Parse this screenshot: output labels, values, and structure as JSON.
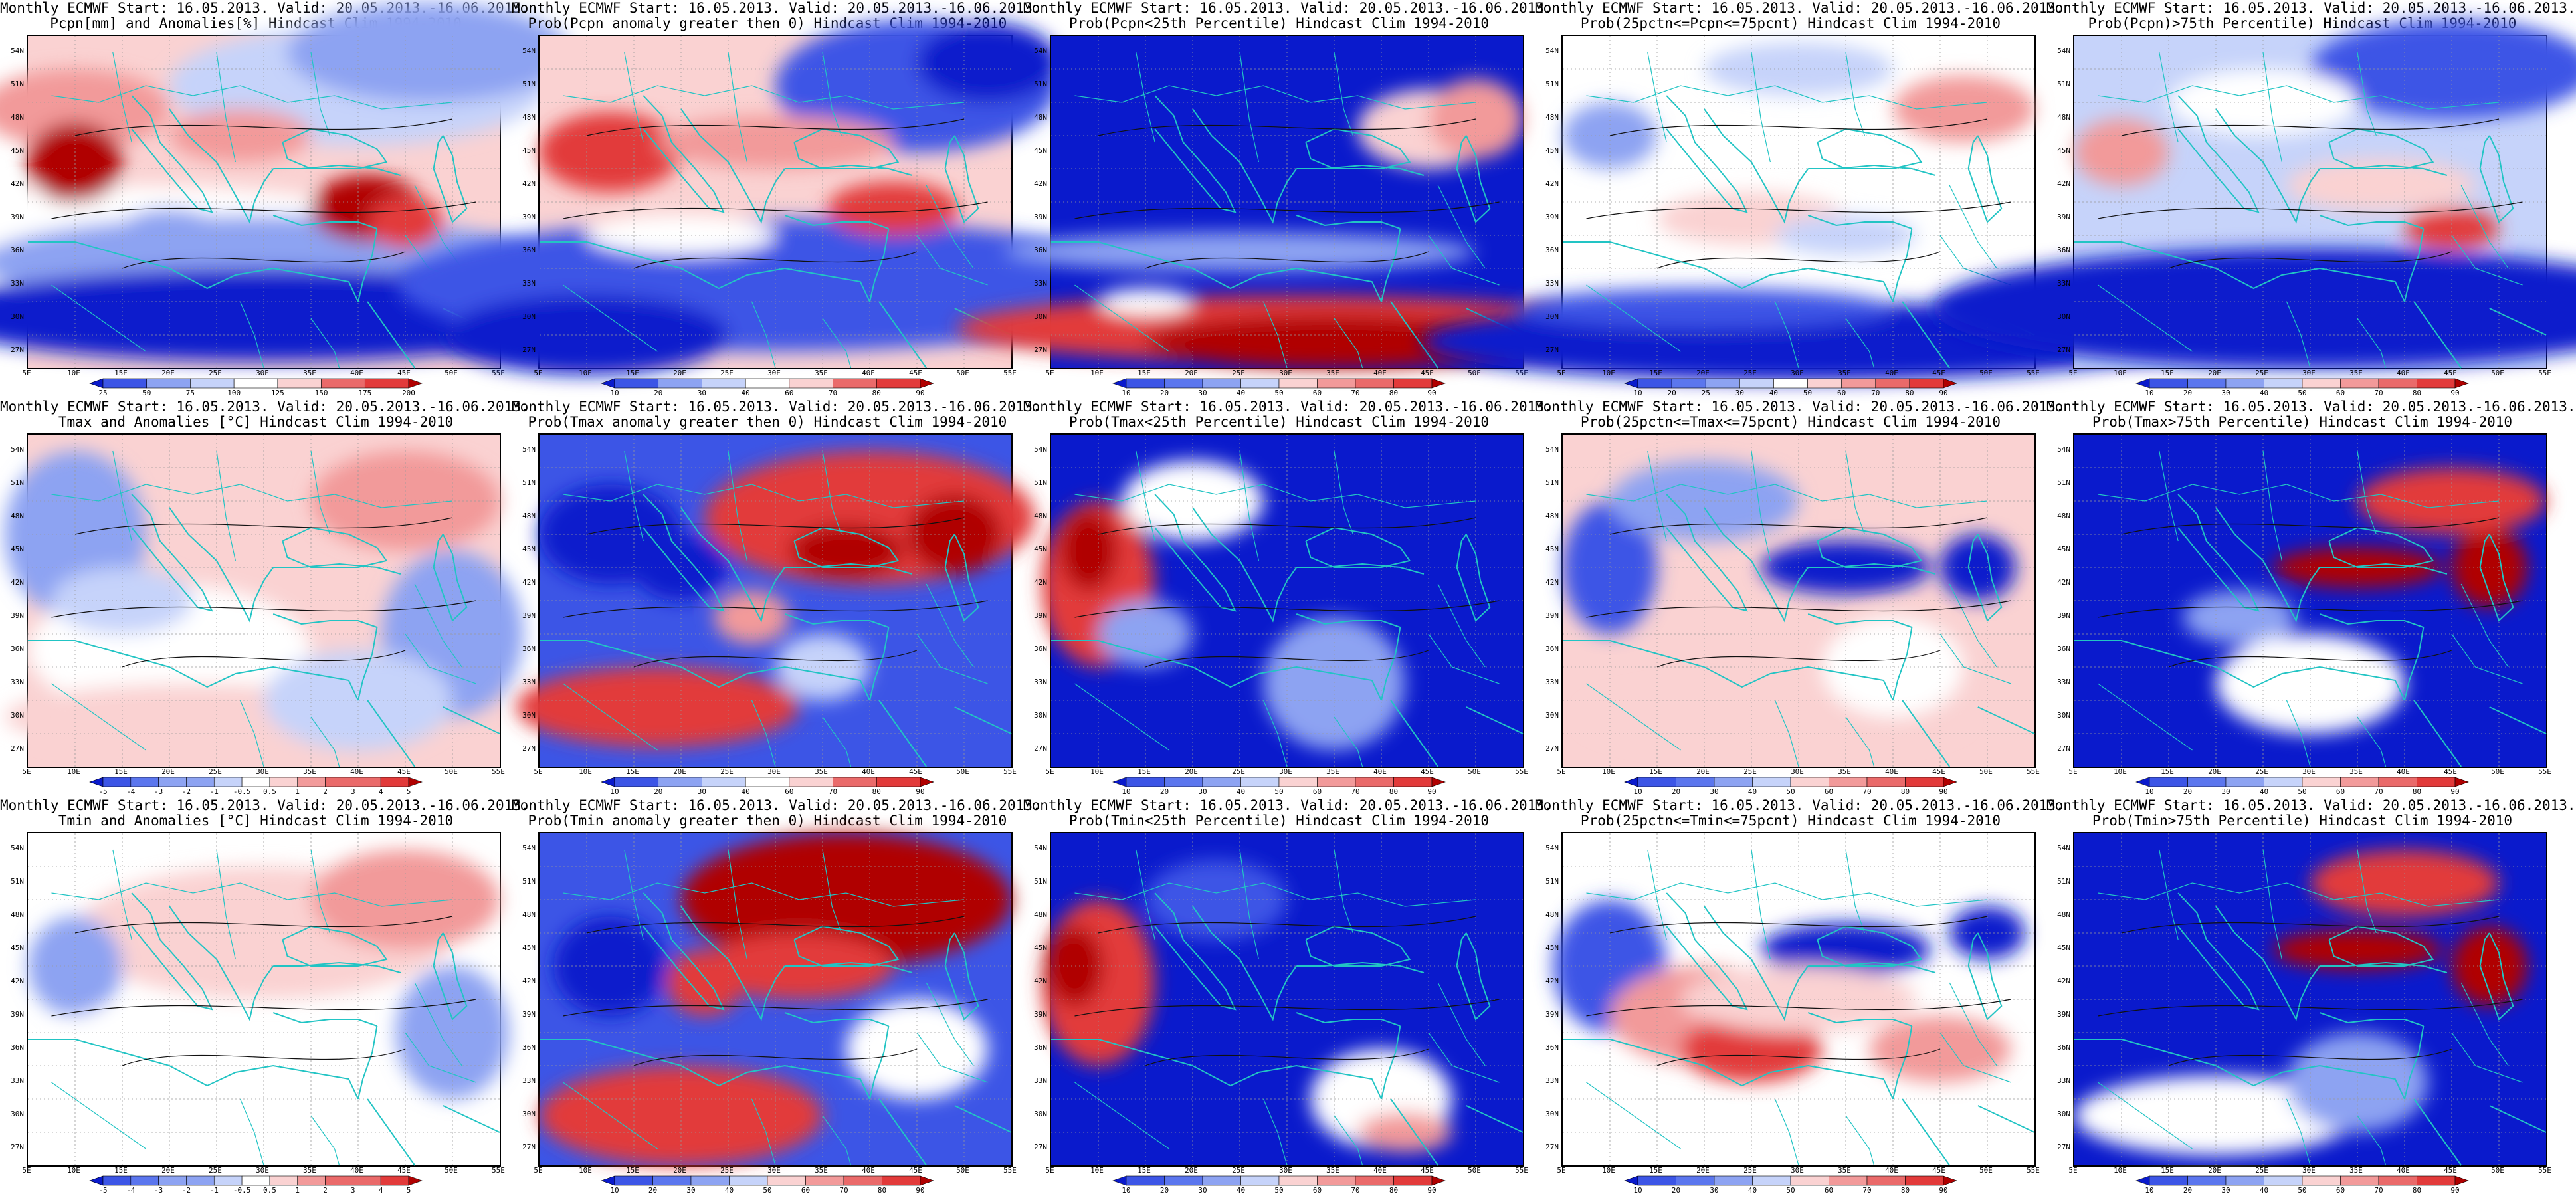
{
  "figure": {
    "lat_labels": [
      "54N",
      "51N",
      "48N",
      "45N",
      "42N",
      "39N",
      "36N",
      "33N",
      "30N",
      "27N"
    ],
    "lon_labels": [
      "5E",
      "10E",
      "15E",
      "20E",
      "25E",
      "30E",
      "35E",
      "40E",
      "45E",
      "50E",
      "55E"
    ],
    "colors": {
      "map_border": "#000000",
      "country_lines": "#22c4c4",
      "contours": "#111111",
      "deep_blue": "#0a1acc",
      "white": "#ffffff",
      "deep_red": "#b00000"
    },
    "panels": [
      {
        "id": "pcpn-anom",
        "line1": "Monthly ECMWF Start: 16.05.2013. Valid: 20.05.2013.-16.06.2013.",
        "line2": "Pcpn[mm] and Anomalies[%] Hindcast Clim 1994-2010",
        "colorbar": [
          "25",
          "50",
          "75",
          "100",
          "125",
          "150",
          "175",
          "200"
        ],
        "pattern": "pcpn_anom"
      },
      {
        "id": "pcpn-prob-gt0",
        "line1": "Monthly ECMWF Start: 16.05.2013. Valid: 20.05.2013.-16.06.2013.",
        "line2": "Prob(Pcpn anomaly greater then 0) Hindcast Clim 1994-2010",
        "colorbar": [
          "10",
          "20",
          "30",
          "40",
          "60",
          "70",
          "80",
          "90"
        ],
        "pattern": "pcpn_gt0"
      },
      {
        "id": "pcpn-prob-lt25",
        "line1": "Monthly ECMWF Start: 16.05.2013. Valid: 20.05.2013.-16.06.2013.",
        "line2": "Prob(Pcpn<25th Percentile) Hindcast Clim 1994-2010",
        "colorbar": [
          "10",
          "20",
          "30",
          "40",
          "50",
          "60",
          "70",
          "80",
          "90"
        ],
        "pattern": "pcpn_lt25"
      },
      {
        "id": "pcpn-prob-mid",
        "line1": "Monthly ECMWF Start: 16.05.2013. Valid: 20.05.2013.-16.06.2013.",
        "line2": "Prob(25pctn<=Pcpn<=75pcnt) Hindcast Clim 1994-2010",
        "colorbar": [
          "10",
          "20",
          "25",
          "30",
          "40",
          "50",
          "60",
          "70",
          "80",
          "90"
        ],
        "pattern": "pcpn_mid"
      },
      {
        "id": "pcpn-prob-gt75",
        "line1": "Monthly ECMWF Start: 16.05.2013. Valid: 20.05.2013.-16.06.2013.",
        "line2": "Prob(Pcpn)>75th Percentile) Hindcast Clim 1994-2010",
        "colorbar": [
          "10",
          "20",
          "30",
          "40",
          "50",
          "60",
          "70",
          "80",
          "90"
        ],
        "pattern": "pcpn_gt75"
      },
      {
        "id": "tmax-anom",
        "line1": "Monthly ECMWF Start: 16.05.2013. Valid: 20.05.2013.-16.06.2013.",
        "line2": "Tmax and Anomalies [°C] Hindcast Clim 1994-2010",
        "colorbar": [
          "-5",
          "-4",
          "-3",
          "-2",
          "-1",
          "-0.5",
          "0.5",
          "1",
          "2",
          "3",
          "4",
          "5"
        ],
        "pattern": "tmax_anom"
      },
      {
        "id": "tmax-prob-gt0",
        "line1": "Monthly ECMWF Start: 16.05.2013. Valid: 20.05.2013.-16.06.2013.",
        "line2": "Prob(Tmax anomaly greater then 0) Hindcast Clim 1994-2010",
        "colorbar": [
          "10",
          "20",
          "30",
          "40",
          "60",
          "70",
          "80",
          "90"
        ],
        "pattern": "tmax_gt0"
      },
      {
        "id": "tmax-prob-lt25",
        "line1": "Monthly ECMWF Start: 16.05.2013. Valid: 20.05.2013.-16.06.2013.",
        "line2": "Prob(Tmax<25th Percentile) Hindcast Clim 1994-2010",
        "colorbar": [
          "10",
          "20",
          "30",
          "40",
          "50",
          "60",
          "70",
          "80",
          "90"
        ],
        "pattern": "tmax_lt25"
      },
      {
        "id": "tmax-prob-mid",
        "line1": "Monthly ECMWF Start: 16.05.2013. Valid: 20.05.2013.-16.06.2013.",
        "line2": "Prob(25pctn<=Tmax<=75pcnt) Hindcast Clim 1994-2010",
        "colorbar": [
          "10",
          "20",
          "30",
          "40",
          "50",
          "60",
          "70",
          "80",
          "90"
        ],
        "pattern": "tmax_mid"
      },
      {
        "id": "tmax-prob-gt75",
        "line1": "Monthly ECMWF Start: 16.05.2013. Valid: 20.05.2013.-16.06.2013.",
        "line2": "Prob(Tmax>75th Percentile) Hindcast Clim 1994-2010",
        "colorbar": [
          "10",
          "20",
          "30",
          "40",
          "50",
          "60",
          "70",
          "80",
          "90"
        ],
        "pattern": "tmax_gt75"
      },
      {
        "id": "tmin-anom",
        "line1": "Monthly ECMWF Start: 16.05.2013. Valid: 20.05.2013.-16.06.2013.",
        "line2": "Tmin and Anomalies [°C] Hindcast Clim 1994-2010",
        "colorbar": [
          "-5",
          "-4",
          "-3",
          "-2",
          "-1",
          "-0.5",
          "0.5",
          "1",
          "2",
          "3",
          "4",
          "5"
        ],
        "pattern": "tmin_anom"
      },
      {
        "id": "tmin-prob-gt0",
        "line1": "Monthly ECMWF Start: 16.05.2013. Valid: 20.05.2013.-16.06.2013.",
        "line2": "Prob(Tmin anomaly greater then 0) Hindcast Clim 1994-2010",
        "colorbar": [
          "10",
          "20",
          "30",
          "40",
          "50",
          "60",
          "70",
          "80",
          "90"
        ],
        "pattern": "tmin_gt0"
      },
      {
        "id": "tmin-prob-lt25",
        "line1": "Monthly ECMWF Start: 16.05.2013. Valid: 20.05.2013.-16.06.2013.",
        "line2": "Prob(Tmin<25th Percentile) Hindcast Clim 1994-2010",
        "colorbar": [
          "10",
          "20",
          "30",
          "40",
          "50",
          "60",
          "70",
          "80",
          "90"
        ],
        "pattern": "tmin_lt25"
      },
      {
        "id": "tmin-prob-mid",
        "line1": "Monthly ECMWF Start: 16.05.2013. Valid: 20.05.2013.-16.06.2013.",
        "line2": "Prob(25pctn<=Tmin<=75pcnt) Hindcast Clim 1994-2010",
        "colorbar": [
          "10",
          "20",
          "30",
          "40",
          "50",
          "60",
          "70",
          "80",
          "90"
        ],
        "pattern": "tmin_mid"
      },
      {
        "id": "tmin-prob-gt75",
        "line1": "Monthly ECMWF Start: 16.05.2013. Valid: 20.05.2013.-16.06.2013.",
        "line2": "Prob(Tmin>75th Percentile) Hindcast Clim 1994-2010",
        "colorbar": [
          "10",
          "20",
          "30",
          "40",
          "50",
          "60",
          "70",
          "80",
          "90"
        ],
        "pattern": "tmin_gt75"
      }
    ]
  }
}
